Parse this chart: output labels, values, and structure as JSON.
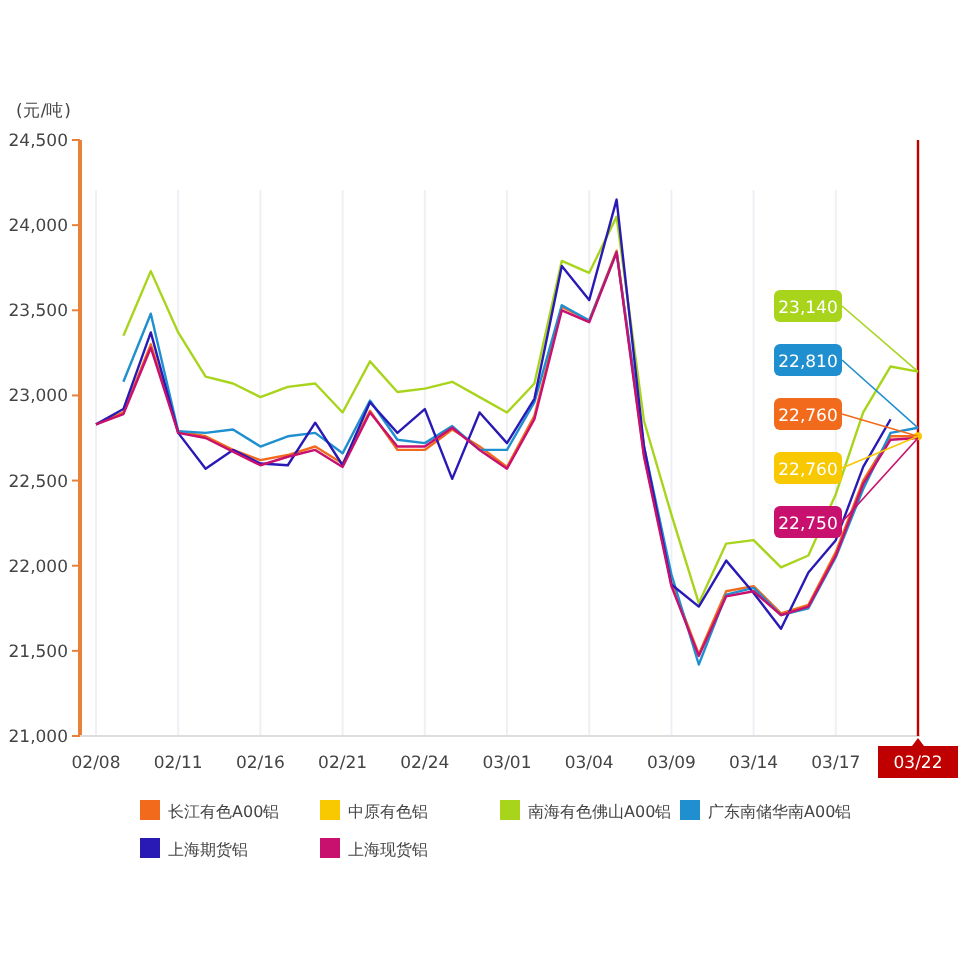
{
  "chart_data": {
    "type": "line",
    "ylabel": "(元/吨)",
    "categories": [
      "02/08",
      null,
      null,
      "02/11",
      null,
      null,
      "02/16",
      null,
      null,
      "02/21",
      null,
      null,
      "02/24",
      null,
      null,
      "03/01",
      null,
      null,
      "03/04",
      null,
      null,
      "03/09",
      null,
      null,
      "03/14",
      null,
      null,
      "03/17",
      null,
      null,
      "03/22"
    ],
    "series": [
      {
        "name": "长江有色A00铝",
        "color": "#f26b1d",
        "values": [
          22830,
          22900,
          23300,
          22790,
          22760,
          22680,
          22620,
          22650,
          22700,
          22600,
          22910,
          22680,
          22680,
          22800,
          22700,
          22580,
          22880,
          23520,
          23440,
          23850,
          22650,
          21900,
          21480,
          21850,
          21880,
          21720,
          21770,
          22080,
          22500,
          22760,
          22760
        ],
        "value_labels": [
          null,
          null,
          null,
          null,
          null,
          null,
          null,
          null,
          null,
          null,
          null,
          null,
          null,
          null,
          null,
          null,
          null,
          null,
          null,
          null,
          null,
          null,
          null,
          null,
          null,
          null,
          null,
          null,
          null,
          null,
          "22,760"
        ]
      },
      {
        "name": "中原有色铝",
        "color": "#f8c800",
        "marker": "circle",
        "values": [
          null,
          null,
          null,
          null,
          null,
          null,
          null,
          null,
          null,
          null,
          null,
          null,
          null,
          null,
          null,
          null,
          null,
          null,
          null,
          null,
          null,
          null,
          null,
          null,
          null,
          null,
          null,
          null,
          null,
          null,
          22760
        ],
        "value_labels": [
          null,
          null,
          null,
          null,
          null,
          null,
          null,
          null,
          null,
          null,
          null,
          null,
          null,
          null,
          null,
          null,
          null,
          null,
          null,
          null,
          null,
          null,
          null,
          null,
          null,
          null,
          null,
          null,
          null,
          null,
          "22,760"
        ]
      },
      {
        "name": "南海有色佛山A00铝",
        "color": "#a8d41c",
        "values": [
          null,
          23350,
          23730,
          23370,
          23110,
          23070,
          22990,
          23050,
          23070,
          22900,
          23200,
          23020,
          23040,
          23080,
          22990,
          22900,
          23070,
          23790,
          23720,
          24050,
          22850,
          22300,
          21780,
          22130,
          22150,
          21990,
          22060,
          22420,
          22900,
          23170,
          23140
        ],
        "value_labels": [
          null,
          null,
          null,
          null,
          null,
          null,
          null,
          null,
          null,
          null,
          null,
          null,
          null,
          null,
          null,
          null,
          null,
          null,
          null,
          null,
          null,
          null,
          null,
          null,
          null,
          null,
          null,
          null,
          null,
          null,
          "23,140"
        ]
      },
      {
        "name": "广东南储华南A00铝",
        "color": "#1f8fd0",
        "values": [
          null,
          23080,
          23480,
          22790,
          22780,
          22800,
          22700,
          22760,
          22780,
          22660,
          22970,
          22740,
          22720,
          22820,
          22680,
          22680,
          22960,
          23530,
          23440,
          23840,
          22700,
          21950,
          21420,
          21830,
          21870,
          21710,
          21750,
          22050,
          22450,
          22780,
          22810
        ],
        "value_labels": [
          null,
          null,
          null,
          null,
          null,
          null,
          null,
          null,
          null,
          null,
          null,
          null,
          null,
          null,
          null,
          null,
          null,
          null,
          null,
          null,
          null,
          null,
          null,
          null,
          null,
          null,
          null,
          null,
          null,
          null,
          "22,810"
        ]
      },
      {
        "name": "上海期货铝",
        "color": "#2a1ab5",
        "values": [
          22830,
          22920,
          23370,
          22780,
          22570,
          22680,
          22600,
          22590,
          22840,
          22590,
          22960,
          22780,
          22920,
          22510,
          22900,
          22720,
          22980,
          23760,
          23560,
          24150,
          22700,
          21890,
          21760,
          22030,
          21840,
          21630,
          21960,
          22150,
          22580,
          22860,
          null
        ]
      },
      {
        "name": "上海现货铝",
        "color": "#c8106e",
        "values": [
          22830,
          22890,
          23280,
          22780,
          22750,
          22670,
          22590,
          22640,
          22680,
          22580,
          22900,
          22700,
          22700,
          22810,
          22680,
          22570,
          22860,
          23500,
          23430,
          23840,
          22640,
          21880,
          21470,
          21820,
          21850,
          21710,
          21760,
          22060,
          22480,
          22740,
          22750
        ],
        "value_labels": [
          null,
          null,
          null,
          null,
          null,
          null,
          null,
          null,
          null,
          null,
          null,
          null,
          null,
          null,
          null,
          null,
          null,
          null,
          null,
          null,
          null,
          null,
          null,
          null,
          null,
          null,
          null,
          null,
          null,
          null,
          "22,750"
        ]
      }
    ],
    "ylim": [
      21000,
      24500
    ],
    "yticks": [
      {
        "value": 21000,
        "label": "21,000"
      },
      {
        "value": 21500,
        "label": "21,500"
      },
      {
        "value": 22000,
        "label": "22,000"
      },
      {
        "value": 22500,
        "label": "22,500"
      },
      {
        "value": 23000,
        "label": "23,000"
      },
      {
        "value": 23500,
        "label": "23,500"
      },
      {
        "value": 24000,
        "label": "24,000"
      },
      {
        "value": 24500,
        "label": "24,500"
      }
    ],
    "grid": "x",
    "legend": "bottom",
    "marker": "none",
    "line_style": "solid",
    "ref_lines": [
      {
        "axis": "x",
        "value": "03/22",
        "color": "#c00000"
      }
    ]
  }
}
